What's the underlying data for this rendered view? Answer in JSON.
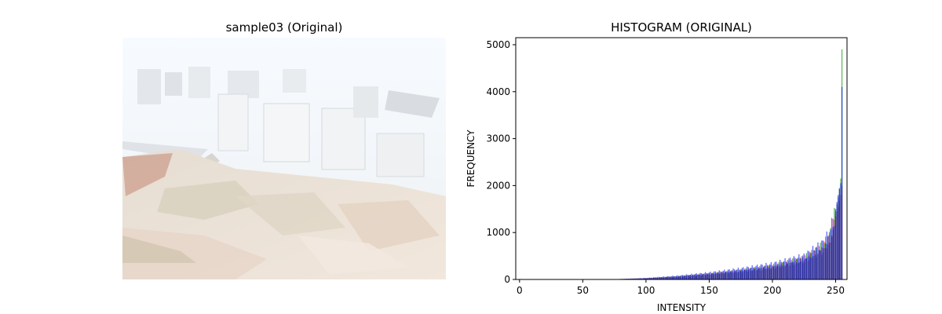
{
  "left_panel": {
    "title": "sample03 (Original)",
    "image_description": "overexposed aerial photo"
  },
  "chart_data": {
    "type": "bar",
    "title": "HISTOGRAM (ORIGINAL)",
    "xlabel": "INTENSITY",
    "ylabel": "FREQUENCY",
    "xlim": [
      -3,
      259
    ],
    "ylim": [
      0,
      5150
    ],
    "xticks": [
      0,
      50,
      100,
      150,
      200,
      250
    ],
    "yticks": [
      0,
      1000,
      2000,
      3000,
      4000,
      5000
    ],
    "series": [
      {
        "name": "red",
        "color": "#ff0000",
        "anchors": [
          [
            0,
            0
          ],
          [
            70,
            0
          ],
          [
            75,
            5
          ],
          [
            100,
            25
          ],
          [
            125,
            60
          ],
          [
            150,
            110
          ],
          [
            175,
            180
          ],
          [
            200,
            260
          ],
          [
            225,
            420
          ],
          [
            240,
            650
          ],
          [
            245,
            850
          ],
          [
            248,
            1100
          ],
          [
            250,
            1350
          ],
          [
            252,
            1550
          ],
          [
            254,
            1800
          ],
          [
            255,
            2000
          ]
        ]
      },
      {
        "name": "green",
        "color": "#008000",
        "anchors": [
          [
            0,
            0
          ],
          [
            70,
            0
          ],
          [
            75,
            5
          ],
          [
            100,
            25
          ],
          [
            125,
            65
          ],
          [
            150,
            120
          ],
          [
            175,
            190
          ],
          [
            200,
            280
          ],
          [
            225,
            440
          ],
          [
            240,
            700
          ],
          [
            245,
            900
          ],
          [
            248,
            1150
          ],
          [
            250,
            1450
          ],
          [
            252,
            1750
          ],
          [
            254,
            2150
          ],
          [
            255,
            4900
          ]
        ]
      },
      {
        "name": "blue",
        "color": "#0000ff",
        "anchors": [
          [
            0,
            0
          ],
          [
            70,
            0
          ],
          [
            75,
            5
          ],
          [
            100,
            30
          ],
          [
            125,
            75
          ],
          [
            150,
            140
          ],
          [
            175,
            220
          ],
          [
            200,
            320
          ],
          [
            225,
            480
          ],
          [
            240,
            750
          ],
          [
            245,
            950
          ],
          [
            248,
            1200
          ],
          [
            250,
            1500
          ],
          [
            252,
            1800
          ],
          [
            254,
            2050
          ],
          [
            255,
            4100
          ]
        ]
      }
    ]
  }
}
